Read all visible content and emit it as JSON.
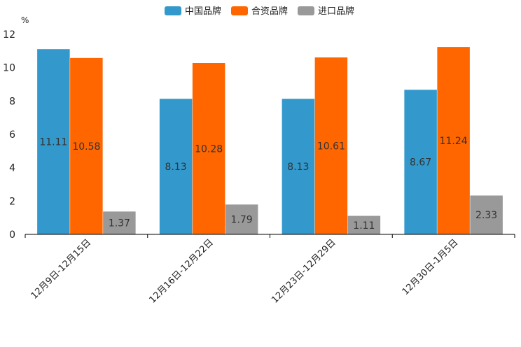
{
  "chart_data": {
    "type": "bar",
    "ylabel": "%",
    "ylim": [
      0,
      12
    ],
    "yticks": [
      0,
      2,
      4,
      6,
      8,
      10,
      12
    ],
    "grid": false,
    "legend_position": "top-center",
    "categories": [
      "12月9日-12月15日",
      "12月16日-12月22日",
      "12月23日-12月29日",
      "12月30日-1月5日"
    ],
    "series": [
      {
        "name": "中国品牌",
        "color": "#3399cc",
        "values": [
          11.11,
          8.13,
          8.13,
          8.67
        ]
      },
      {
        "name": "合资品牌",
        "color": "#ff6600",
        "values": [
          10.58,
          10.28,
          10.61,
          11.24
        ]
      },
      {
        "name": "进口品牌",
        "color": "#999999",
        "values": [
          1.37,
          1.79,
          1.11,
          2.33
        ]
      }
    ]
  }
}
